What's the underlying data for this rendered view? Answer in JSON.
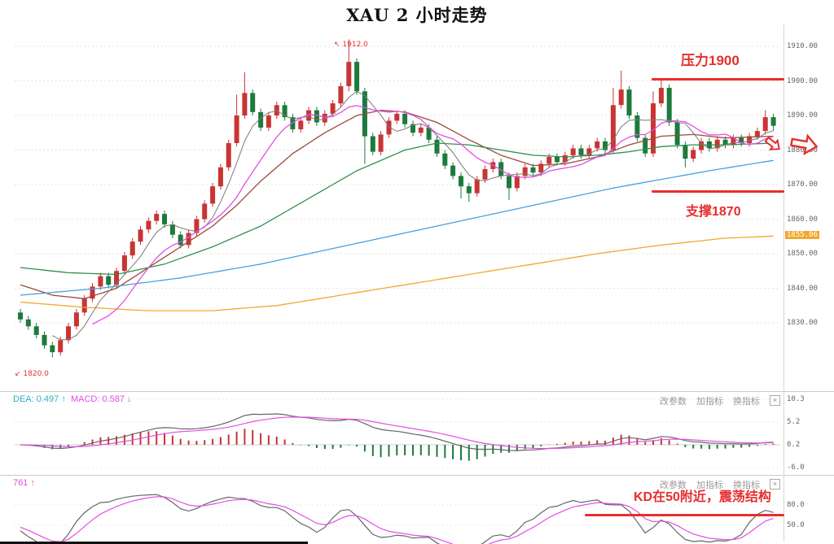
{
  "title": "XAU 2 小时走势",
  "annotations": {
    "resistance_label": "压力1900",
    "support_label": "支撑1870",
    "kd_label": "KD在50附近，震荡结构",
    "peak_label": "1912.0",
    "peak_marker": "↖",
    "low_label": "1820.0",
    "low_marker": "↙",
    "accent_red": "#e62e2e"
  },
  "axis": {
    "main_labels": [
      {
        "text": "1910.00",
        "price": 1910
      },
      {
        "text": "1900.00",
        "price": 1900
      },
      {
        "text": "1890.00",
        "price": 1890
      },
      {
        "text": "1880.00",
        "price": 1880
      },
      {
        "text": "1870.00",
        "price": 1870
      },
      {
        "text": "1860.00",
        "price": 1860
      },
      {
        "text": "1850.00",
        "price": 1850
      },
      {
        "text": "1840.00",
        "price": 1840
      },
      {
        "text": "1830.00",
        "price": 1830
      }
    ],
    "ma_badge": {
      "text": "1855.06",
      "price": 1855.06,
      "color": "#f0a830"
    }
  },
  "panels": {
    "macd": {
      "readout_dea": "DEA: 0.497 ↑",
      "readout_macd": "MACD: 0.587 ↓",
      "buttons": [
        "改参数",
        "加指标",
        "换指标"
      ],
      "close": "×"
    },
    "kdj": {
      "readout": "761 ↑",
      "buttons": [
        "改参数",
        "加指标",
        "换指标"
      ],
      "close": "×"
    }
  },
  "chart_data": {
    "type": "candlestick",
    "title": "XAU 2 小时走势",
    "timeframe": "2小时",
    "ylim": [
      1818,
      1914
    ],
    "y_ticks": [
      1910,
      1900,
      1890,
      1880,
      1870,
      1860,
      1850,
      1840,
      1830
    ],
    "up_color": "#c93434",
    "down_color": "#1c7a3c",
    "levels": {
      "resistance": 1900,
      "support": 1870,
      "peak": 1912.0,
      "low": 1820.0
    },
    "candles": [
      [
        1833,
        1834,
        1830,
        1831
      ],
      [
        1831,
        1832,
        1828,
        1829
      ],
      [
        1829,
        1830,
        1825.5,
        1826.5
      ],
      [
        1826.5,
        1827.5,
        1822.5,
        1823.5
      ],
      [
        1823.5,
        1824.5,
        1820,
        1821.5
      ],
      [
        1821.5,
        1826,
        1820.5,
        1825
      ],
      [
        1825,
        1830,
        1824,
        1829
      ],
      [
        1829,
        1834,
        1828,
        1833
      ],
      [
        1833,
        1838,
        1832,
        1837
      ],
      [
        1837,
        1841.5,
        1836,
        1840.5
      ],
      [
        1840.5,
        1844.5,
        1839.5,
        1843.5
      ],
      [
        1843.5,
        1844.5,
        1840,
        1841
      ],
      [
        1841,
        1846,
        1840,
        1845
      ],
      [
        1845,
        1850.5,
        1844,
        1849.5
      ],
      [
        1849.5,
        1854.5,
        1848.5,
        1853.5
      ],
      [
        1853.5,
        1858,
        1852.5,
        1857
      ],
      [
        1857,
        1860.5,
        1856,
        1859.5
      ],
      [
        1859.5,
        1862.5,
        1858.5,
        1861.5
      ],
      [
        1861.5,
        1862.5,
        1857.5,
        1858.5
      ],
      [
        1858.5,
        1859.5,
        1854.5,
        1855.5
      ],
      [
        1855.5,
        1856.5,
        1851.5,
        1852.5
      ],
      [
        1852.5,
        1857,
        1851.5,
        1856
      ],
      [
        1856,
        1861,
        1855,
        1860
      ],
      [
        1860,
        1865.5,
        1859,
        1864.5
      ],
      [
        1864.5,
        1870.5,
        1863.5,
        1869.5
      ],
      [
        1869.5,
        1876,
        1868.5,
        1875
      ],
      [
        1875,
        1883,
        1874,
        1882
      ],
      [
        1882,
        1896,
        1881,
        1890
      ],
      [
        1890,
        1902.5,
        1889,
        1896.5
      ],
      [
        1896.5,
        1897.5,
        1890,
        1891
      ],
      [
        1891,
        1892,
        1885.5,
        1886.5
      ],
      [
        1886.5,
        1891,
        1885.5,
        1890
      ],
      [
        1890,
        1894,
        1889,
        1893
      ],
      [
        1893,
        1894,
        1888.5,
        1889.5
      ],
      [
        1889.5,
        1890.5,
        1885,
        1886
      ],
      [
        1886,
        1889.5,
        1885,
        1888.5
      ],
      [
        1888.5,
        1892.5,
        1887.5,
        1891.5
      ],
      [
        1891.5,
        1892.5,
        1887,
        1888
      ],
      [
        1888,
        1891.5,
        1887,
        1890.5
      ],
      [
        1890.5,
        1894.5,
        1889.5,
        1893.5
      ],
      [
        1893.5,
        1899.5,
        1892.5,
        1898.5
      ],
      [
        1898.5,
        1912,
        1897,
        1905.5
      ],
      [
        1905.5,
        1906.5,
        1896,
        1897
      ],
      [
        1897,
        1898,
        1876,
        1884
      ],
      [
        1884,
        1885,
        1878.5,
        1879.5
      ],
      [
        1879.5,
        1885.5,
        1878.5,
        1884.5
      ],
      [
        1884.5,
        1889.5,
        1883.5,
        1888.5
      ],
      [
        1888.5,
        1891.5,
        1887.5,
        1890.5
      ],
      [
        1890.5,
        1891.5,
        1886.5,
        1887.5
      ],
      [
        1887.5,
        1888.5,
        1884,
        1885
      ],
      [
        1885,
        1887.5,
        1884,
        1886.5
      ],
      [
        1886.5,
        1887.5,
        1882,
        1883
      ],
      [
        1883,
        1884,
        1878,
        1879
      ],
      [
        1879,
        1880,
        1874.5,
        1875.5
      ],
      [
        1875.5,
        1876.5,
        1871.5,
        1872.5
      ],
      [
        1872.5,
        1873.5,
        1866,
        1869.5
      ],
      [
        1869.5,
        1870.5,
        1865,
        1867.5
      ],
      [
        1867.5,
        1872.5,
        1866.5,
        1871.5
      ],
      [
        1871.5,
        1875.5,
        1870.5,
        1874.5
      ],
      [
        1874.5,
        1877.5,
        1873.5,
        1876.5
      ],
      [
        1876.5,
        1877.5,
        1871.5,
        1872.5
      ],
      [
        1872.5,
        1873.5,
        1865.5,
        1869
      ],
      [
        1869,
        1873.5,
        1868,
        1872.5
      ],
      [
        1872.5,
        1876,
        1871.5,
        1875
      ],
      [
        1875,
        1876,
        1872.5,
        1873.5
      ],
      [
        1873.5,
        1877,
        1872.5,
        1876
      ],
      [
        1876,
        1879,
        1875,
        1878
      ],
      [
        1878,
        1879,
        1875.5,
        1876.5
      ],
      [
        1876.5,
        1879.5,
        1875.5,
        1878.5
      ],
      [
        1878.5,
        1881.5,
        1877.5,
        1880.5
      ],
      [
        1880.5,
        1881.5,
        1877.5,
        1878.5
      ],
      [
        1878.5,
        1881.5,
        1877.5,
        1880.5
      ],
      [
        1880.5,
        1883.5,
        1879.5,
        1882.5
      ],
      [
        1882.5,
        1883.5,
        1879,
        1880
      ],
      [
        1880,
        1898,
        1879,
        1893
      ],
      [
        1893,
        1903,
        1892,
        1897.5
      ],
      [
        1897.5,
        1898.5,
        1889,
        1890
      ],
      [
        1890,
        1891,
        1882.5,
        1883.5
      ],
      [
        1883.5,
        1884.5,
        1878,
        1879
      ],
      [
        1879,
        1897,
        1878,
        1893.5
      ],
      [
        1893.5,
        1900.5,
        1892.5,
        1898
      ],
      [
        1898,
        1899,
        1887,
        1888
      ],
      [
        1888,
        1889,
        1880.5,
        1881.5
      ],
      [
        1881.5,
        1882.5,
        1875,
        1877.5
      ],
      [
        1877.5,
        1881,
        1876.5,
        1880
      ],
      [
        1880,
        1883.5,
        1879,
        1882.5
      ],
      [
        1882.5,
        1883.5,
        1879.5,
        1880.5
      ],
      [
        1880.5,
        1884,
        1879.5,
        1883
      ],
      [
        1883,
        1884,
        1880.5,
        1881.5
      ],
      [
        1881.5,
        1884.5,
        1880.5,
        1883.5
      ],
      [
        1883.5,
        1884.5,
        1881,
        1882
      ],
      [
        1882,
        1885,
        1881,
        1884
      ],
      [
        1884,
        1886.5,
        1883,
        1885.5
      ],
      [
        1885.5,
        1891.5,
        1884.5,
        1889.5
      ],
      [
        1889.5,
        1890.5,
        1885.5,
        1887
      ]
    ],
    "ma_computed": [
      {
        "name": "MA5",
        "period": 5,
        "color": "#7a7a7a"
      },
      {
        "name": "MA10",
        "period": 10,
        "color": "#e44ee4"
      }
    ],
    "ma_waypoints": [
      {
        "name": "MA30",
        "color": "#9a4a3a",
        "points": [
          [
            0,
            1841
          ],
          [
            4,
            1838
          ],
          [
            8,
            1837
          ],
          [
            12,
            1840
          ],
          [
            16,
            1846
          ],
          [
            20,
            1852
          ],
          [
            24,
            1858
          ],
          [
            27,
            1864
          ],
          [
            30,
            1871
          ],
          [
            34,
            1879
          ],
          [
            38,
            1885
          ],
          [
            42,
            1890
          ],
          [
            45,
            1891.5
          ],
          [
            48,
            1891
          ],
          [
            52,
            1888
          ],
          [
            56,
            1883
          ],
          [
            60,
            1878.5
          ],
          [
            64,
            1875.5
          ],
          [
            68,
            1876
          ],
          [
            72,
            1878
          ],
          [
            76,
            1881.5
          ],
          [
            80,
            1884
          ],
          [
            84,
            1884.5
          ],
          [
            88,
            1883.5
          ],
          [
            94,
            1884
          ]
        ]
      },
      {
        "name": "MA60",
        "color": "#2f8f4f",
        "points": [
          [
            0,
            1846
          ],
          [
            6,
            1844.5
          ],
          [
            12,
            1844
          ],
          [
            18,
            1847
          ],
          [
            24,
            1852
          ],
          [
            30,
            1858
          ],
          [
            36,
            1866
          ],
          [
            42,
            1874
          ],
          [
            48,
            1880
          ],
          [
            52,
            1882
          ],
          [
            56,
            1881.5
          ],
          [
            60,
            1880
          ],
          [
            64,
            1878.5
          ],
          [
            68,
            1878
          ],
          [
            72,
            1878.5
          ],
          [
            76,
            1879.5
          ],
          [
            80,
            1881
          ],
          [
            84,
            1881.5
          ],
          [
            88,
            1881.5
          ],
          [
            94,
            1882
          ]
        ]
      },
      {
        "name": "MA120",
        "color": "#4aa0dd",
        "points": [
          [
            0,
            1838
          ],
          [
            10,
            1840
          ],
          [
            20,
            1843
          ],
          [
            30,
            1847
          ],
          [
            40,
            1852
          ],
          [
            48,
            1856
          ],
          [
            56,
            1860
          ],
          [
            62,
            1863
          ],
          [
            68,
            1866
          ],
          [
            74,
            1869
          ],
          [
            80,
            1871.5
          ],
          [
            86,
            1874
          ],
          [
            90,
            1875.5
          ],
          [
            94,
            1877
          ]
        ]
      },
      {
        "name": "MA250",
        "color": "#f0a830",
        "points": [
          [
            0,
            1836
          ],
          [
            8,
            1834.5
          ],
          [
            16,
            1833.5
          ],
          [
            24,
            1833.5
          ],
          [
            32,
            1835
          ],
          [
            40,
            1838
          ],
          [
            48,
            1841
          ],
          [
            56,
            1844
          ],
          [
            64,
            1847
          ],
          [
            72,
            1850
          ],
          [
            80,
            1852.5
          ],
          [
            88,
            1854.5
          ],
          [
            94,
            1855.1
          ]
        ]
      }
    ],
    "indicators": {
      "macd": {
        "type": "macd",
        "fast": 12,
        "slow": 26,
        "signal": 9,
        "dea_value": 0.497,
        "macd_value": 0.587,
        "dif_color": "#666666",
        "dea_color": "#e44ee4",
        "axis_labels": [
          "10.3",
          "5.2",
          "0.2",
          "-6.0"
        ]
      },
      "kdj": {
        "type": "stochastic",
        "k_period": 9,
        "d_period": 3,
        "k_color": "#666666",
        "d_color": "#e44ee4",
        "axis_labels": [
          "80.0",
          "50.0"
        ]
      }
    }
  }
}
